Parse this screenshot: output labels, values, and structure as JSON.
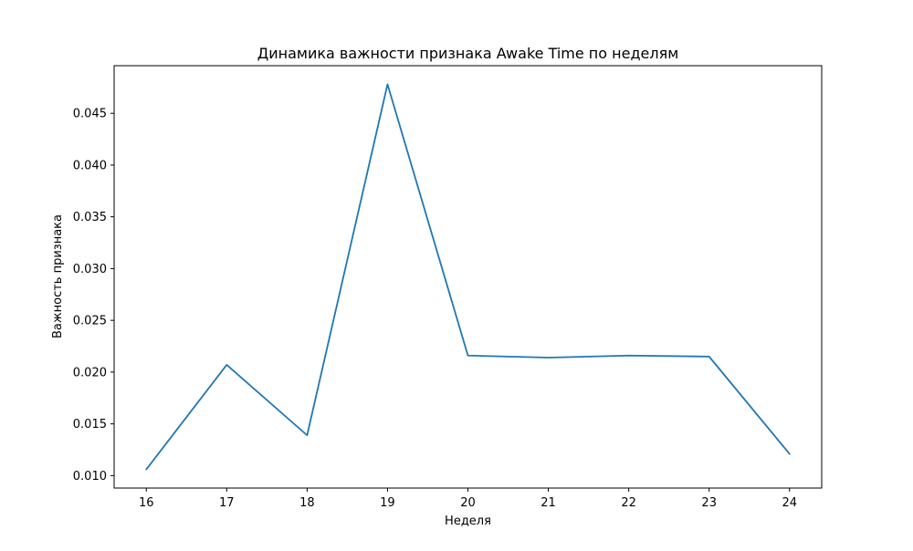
{
  "chart_data": {
    "type": "line",
    "title": "Динамика важности признака Awake Time по неделям",
    "xlabel": "Неделя",
    "ylabel": "Важность признака",
    "x": [
      16,
      17,
      18,
      19,
      20,
      21,
      22,
      23,
      24
    ],
    "xticks": [
      "16",
      "17",
      "18",
      "19",
      "20",
      "21",
      "22",
      "23",
      "24"
    ],
    "yticks": [
      "0.010",
      "0.015",
      "0.020",
      "0.025",
      "0.030",
      "0.035",
      "0.040",
      "0.045"
    ],
    "ytick_values": [
      0.01,
      0.015,
      0.02,
      0.025,
      0.03,
      0.035,
      0.04,
      0.045
    ],
    "series": [
      {
        "values": [
          0.0106,
          0.0207,
          0.0139,
          0.0478,
          0.0216,
          0.0214,
          0.0216,
          0.0215,
          0.0121
        ],
        "color": "#1f77b4"
      }
    ],
    "xlim": [
      15.6,
      24.4
    ],
    "ylim": [
      0.0088,
      0.0496
    ],
    "grid": false,
    "legend": "none"
  }
}
